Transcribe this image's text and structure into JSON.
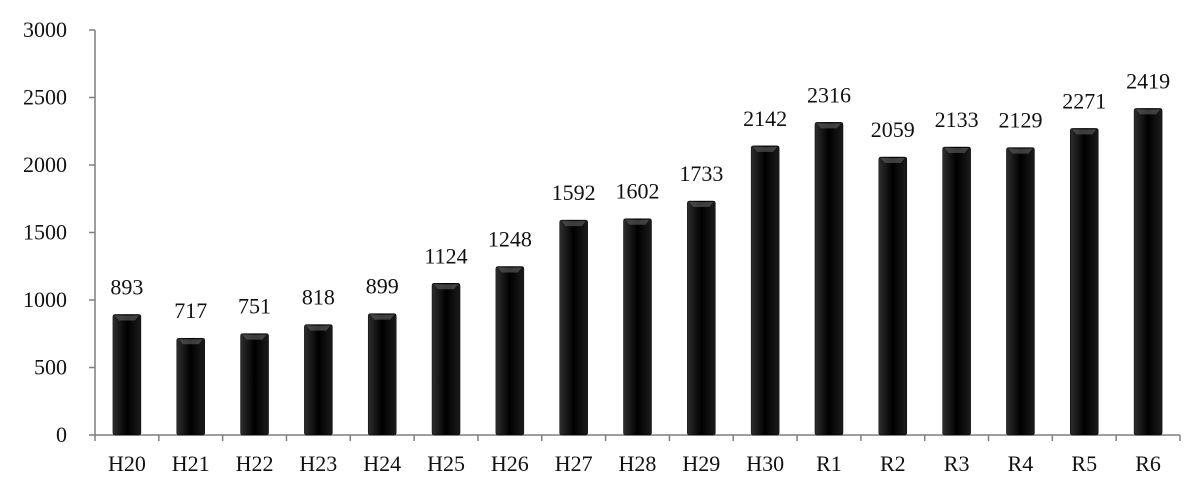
{
  "chart_data": {
    "type": "bar",
    "title": "",
    "xlabel": "",
    "ylabel": "",
    "categories": [
      "H20",
      "H21",
      "H22",
      "H23",
      "H24",
      "H25",
      "H26",
      "H27",
      "H28",
      "H29",
      "H30",
      "R1",
      "R2",
      "R3",
      "R4",
      "R5",
      "R6"
    ],
    "values": [
      893,
      717,
      751,
      818,
      899,
      1124,
      1248,
      1592,
      1602,
      1733,
      2142,
      2316,
      2059,
      2133,
      2129,
      2271,
      2419
    ],
    "value_labels": [
      "893",
      "717",
      "751",
      "818",
      "899",
      "1124",
      "1248",
      "1592",
      "1602",
      "1733",
      "2142",
      "2316",
      "2059",
      "2133",
      "2129",
      "2271",
      "2419"
    ],
    "ylim": [
      0,
      3000
    ],
    "yticks": [
      0,
      500,
      1000,
      1500,
      2000,
      2500,
      3000
    ],
    "ytick_labels": [
      "0",
      "500",
      "1000",
      "1500",
      "2000",
      "2500",
      "3000"
    ],
    "grid": false,
    "legend": "none",
    "bar_color": "#000000"
  }
}
